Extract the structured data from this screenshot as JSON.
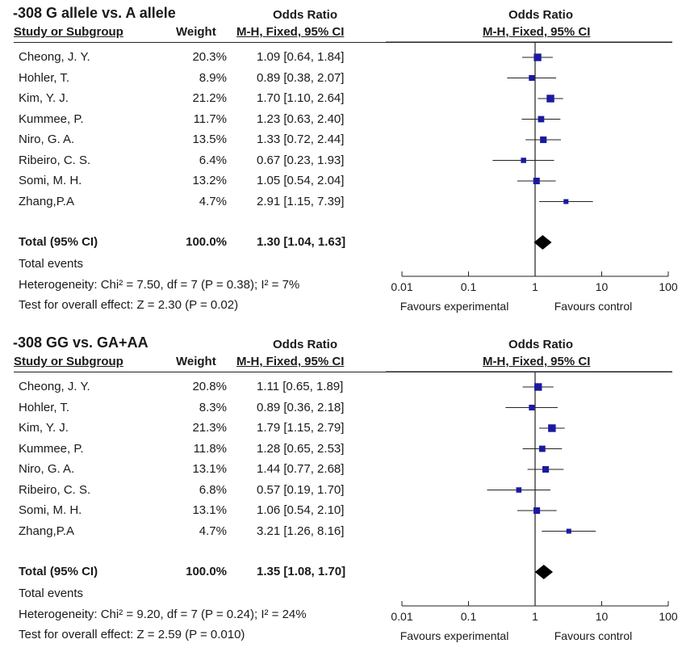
{
  "chart_data": [
    {
      "type": "forest",
      "title": "-308 G allele vs. A allele",
      "columns": {
        "study": "Study or Subgroup",
        "weight": "Weight",
        "or_header": "Odds Ratio",
        "or_sub": "M-H, Fixed, 95% CI",
        "plot_header": "Odds Ratio",
        "plot_sub": "M-H, Fixed, 95% CI"
      },
      "studies": [
        {
          "name": "Cheong, J. Y.",
          "weight": "20.3%",
          "ci_text": "1.09 [0.64, 1.84]",
          "or": 1.09,
          "lo": 0.64,
          "hi": 1.84,
          "w": 20.3
        },
        {
          "name": "Hohler, T.",
          "weight": "8.9%",
          "ci_text": "0.89 [0.38, 2.07]",
          "or": 0.89,
          "lo": 0.38,
          "hi": 2.07,
          "w": 8.9
        },
        {
          "name": "Kim, Y. J.",
          "weight": "21.2%",
          "ci_text": "1.70 [1.10, 2.64]",
          "or": 1.7,
          "lo": 1.1,
          "hi": 2.64,
          "w": 21.2
        },
        {
          "name": "Kummee, P.",
          "weight": "11.7%",
          "ci_text": "1.23 [0.63, 2.40]",
          "or": 1.23,
          "lo": 0.63,
          "hi": 2.4,
          "w": 11.7
        },
        {
          "name": "Niro, G. A.",
          "weight": "13.5%",
          "ci_text": "1.33 [0.72, 2.44]",
          "or": 1.33,
          "lo": 0.72,
          "hi": 2.44,
          "w": 13.5
        },
        {
          "name": "Ribeiro, C. S.",
          "weight": "6.4%",
          "ci_text": "0.67 [0.23, 1.93]",
          "or": 0.67,
          "lo": 0.23,
          "hi": 1.93,
          "w": 6.4
        },
        {
          "name": "Somi, M. H.",
          "weight": "13.2%",
          "ci_text": "1.05 [0.54, 2.04]",
          "or": 1.05,
          "lo": 0.54,
          "hi": 2.04,
          "w": 13.2
        },
        {
          "name": "Zhang,P.A",
          "weight": "4.7%",
          "ci_text": "2.91 [1.15, 7.39]",
          "or": 2.91,
          "lo": 1.15,
          "hi": 7.39,
          "w": 4.7
        }
      ],
      "total": {
        "label": "Total (95% CI)",
        "weight": "100.0%",
        "ci_text": "1.30 [1.04, 1.63]",
        "or": 1.3,
        "lo": 1.04,
        "hi": 1.63
      },
      "total_events": "Total events",
      "heterogeneity": "Heterogeneity: Chi² = 7.50, df = 7 (P = 0.38); I² = 7%",
      "overall_effect": "Test for overall effect: Z = 2.30 (P = 0.02)",
      "x_scale": "log",
      "xlim": [
        0.01,
        100
      ],
      "ticks": [
        "0.01",
        "0.1",
        "1",
        "10",
        "100"
      ],
      "favours_left": "Favours experimental",
      "favours_right": "Favours control",
      "colors": {
        "box": "#1a1aa0",
        "line": "#222222"
      }
    },
    {
      "type": "forest",
      "title": "-308 GG vs. GA+AA",
      "columns": {
        "study": "Study or Subgroup",
        "weight": "Weight",
        "or_header": "Odds Ratio",
        "or_sub": "M-H, Fixed, 95% CI",
        "plot_header": "Odds Ratio",
        "plot_sub": "M-H, Fixed, 95% CI"
      },
      "studies": [
        {
          "name": "Cheong, J. Y.",
          "weight": "20.8%",
          "ci_text": "1.11 [0.65, 1.89]",
          "or": 1.11,
          "lo": 0.65,
          "hi": 1.89,
          "w": 20.8
        },
        {
          "name": "Hohler, T.",
          "weight": "8.3%",
          "ci_text": "0.89 [0.36, 2.18]",
          "or": 0.89,
          "lo": 0.36,
          "hi": 2.18,
          "w": 8.3
        },
        {
          "name": "Kim, Y. J.",
          "weight": "21.3%",
          "ci_text": "1.79 [1.15, 2.79]",
          "or": 1.79,
          "lo": 1.15,
          "hi": 2.79,
          "w": 21.3
        },
        {
          "name": "Kummee, P.",
          "weight": "11.8%",
          "ci_text": "1.28 [0.65, 2.53]",
          "or": 1.28,
          "lo": 0.65,
          "hi": 2.53,
          "w": 11.8
        },
        {
          "name": "Niro, G. A.",
          "weight": "13.1%",
          "ci_text": "1.44 [0.77, 2.68]",
          "or": 1.44,
          "lo": 0.77,
          "hi": 2.68,
          "w": 13.1
        },
        {
          "name": "Ribeiro, C. S.",
          "weight": "6.8%",
          "ci_text": "0.57 [0.19, 1.70]",
          "or": 0.57,
          "lo": 0.19,
          "hi": 1.7,
          "w": 6.8
        },
        {
          "name": "Somi, M. H.",
          "weight": "13.1%",
          "ci_text": "1.06 [0.54, 2.10]",
          "or": 1.06,
          "lo": 0.54,
          "hi": 2.1,
          "w": 13.1
        },
        {
          "name": "Zhang,P.A",
          "weight": "4.7%",
          "ci_text": "3.21 [1.26, 8.16]",
          "or": 3.21,
          "lo": 1.26,
          "hi": 8.16,
          "w": 4.7
        }
      ],
      "total": {
        "label": "Total (95% CI)",
        "weight": "100.0%",
        "ci_text": "1.35 [1.08, 1.70]",
        "or": 1.35,
        "lo": 1.08,
        "hi": 1.7
      },
      "total_events": "Total events",
      "heterogeneity": "Heterogeneity: Chi² = 9.20, df = 7 (P = 0.24); I² = 24%",
      "overall_effect": "Test for overall effect: Z = 2.59 (P = 0.010)",
      "x_scale": "log",
      "xlim": [
        0.01,
        100
      ],
      "ticks": [
        "0.01",
        "0.1",
        "1",
        "10",
        "100"
      ],
      "favours_left": "Favours experimental",
      "favours_right": "Favours control",
      "colors": {
        "box": "#1a1aa0",
        "line": "#222222"
      }
    }
  ]
}
